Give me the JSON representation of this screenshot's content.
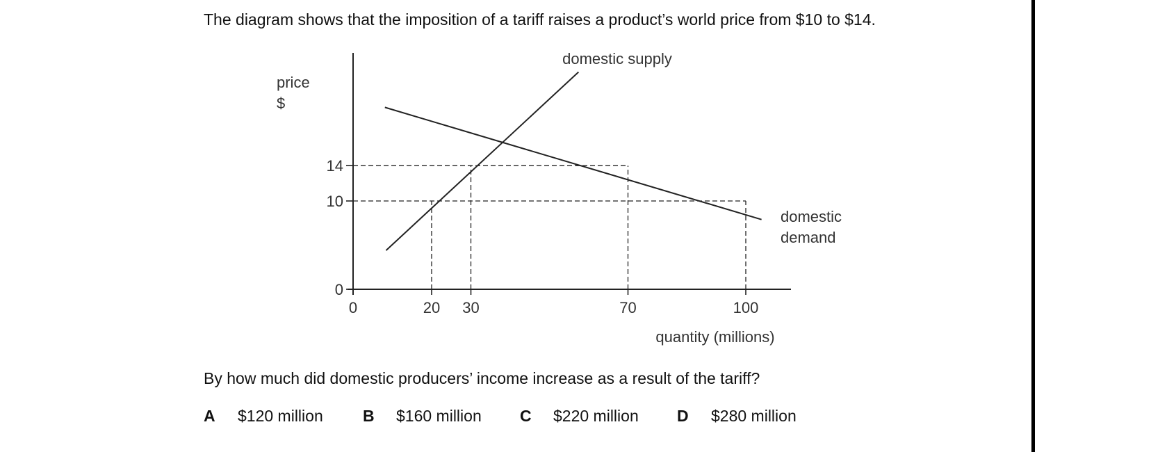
{
  "question": {
    "intro": "The diagram shows that the imposition of a tariff raises a product’s world price from $10 to $14.",
    "stem": "By how much did domestic producers’ income increase as a result of the tariff?",
    "options": [
      {
        "letter": "A",
        "text": "$120 million"
      },
      {
        "letter": "B",
        "text": "$160 million"
      },
      {
        "letter": "C",
        "text": "$220 million"
      },
      {
        "letter": "D",
        "text": "$280 million"
      }
    ]
  },
  "chart_data": {
    "type": "line",
    "title": "",
    "ylabel_line1": "price",
    "ylabel_line2": "$",
    "xlabel": "quantity (millions)",
    "x_ticks": [
      {
        "value": 0,
        "label": "0"
      },
      {
        "value": 20,
        "label": "20"
      },
      {
        "value": 30,
        "label": "30"
      },
      {
        "value": 70,
        "label": "70"
      },
      {
        "value": 100,
        "label": "100"
      }
    ],
    "y_ticks": [
      {
        "value": 0,
        "label": "0"
      },
      {
        "value": 10,
        "label": "10"
      },
      {
        "value": 14,
        "label": "14"
      }
    ],
    "xlim": [
      0,
      110
    ],
    "ylim": [
      0,
      25
    ],
    "series": [
      {
        "name": "domestic supply",
        "points": [
          [
            8.4,
            4.4
          ],
          [
            57.4,
            24.6
          ]
        ]
      },
      {
        "name": "domestic demand",
        "points": [
          [
            8.1,
            20.6
          ],
          [
            104.0,
            7.9
          ]
        ],
        "label_lines": [
          "domestic",
          "demand"
        ]
      }
    ],
    "reference_lines": [
      {
        "type": "horizontal",
        "y": 14,
        "x_to": 70
      },
      {
        "type": "horizontal",
        "y": 10,
        "x_to": 100
      },
      {
        "type": "vertical",
        "x": 20,
        "y_to": 10
      },
      {
        "type": "vertical",
        "x": 30,
        "y_to": 14
      },
      {
        "type": "vertical",
        "x": 70,
        "y_to": 14
      },
      {
        "type": "vertical",
        "x": 100,
        "y_to": 10
      }
    ]
  }
}
